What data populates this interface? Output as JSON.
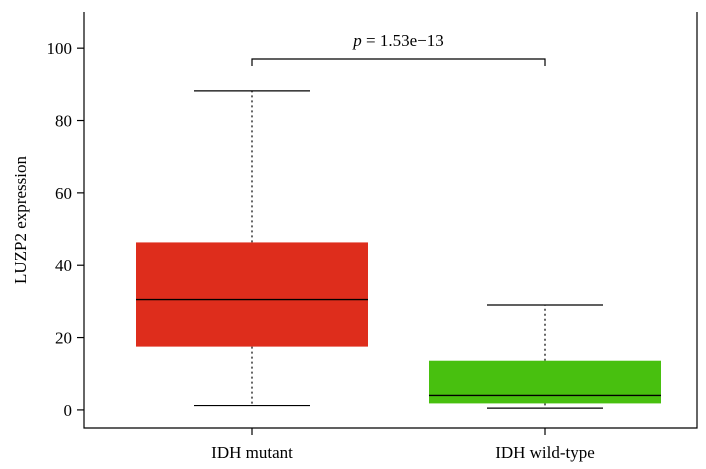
{
  "chart_data": {
    "type": "box",
    "ylabel": "LUZP2 expression",
    "xlabel": "",
    "title": "",
    "ylim": [
      -5,
      110
    ],
    "yticks": [
      0,
      20,
      40,
      60,
      80,
      100
    ],
    "categories": [
      "IDH mutant",
      "IDH wild-type"
    ],
    "boxes": [
      {
        "category": "IDH mutant",
        "min": 1.2,
        "q1": 17.5,
        "median": 30.5,
        "q3": 46.3,
        "max": 88.2,
        "color": "#de2d1c"
      },
      {
        "category": "IDH wild-type",
        "min": 0.5,
        "q1": 1.8,
        "median": 4.0,
        "q3": 13.6,
        "max": 29.0,
        "color": "#48c00f"
      }
    ],
    "annotation": {
      "p_label": "p",
      "p_value": " = 1.53e−13",
      "bracket_y": 97
    }
  }
}
